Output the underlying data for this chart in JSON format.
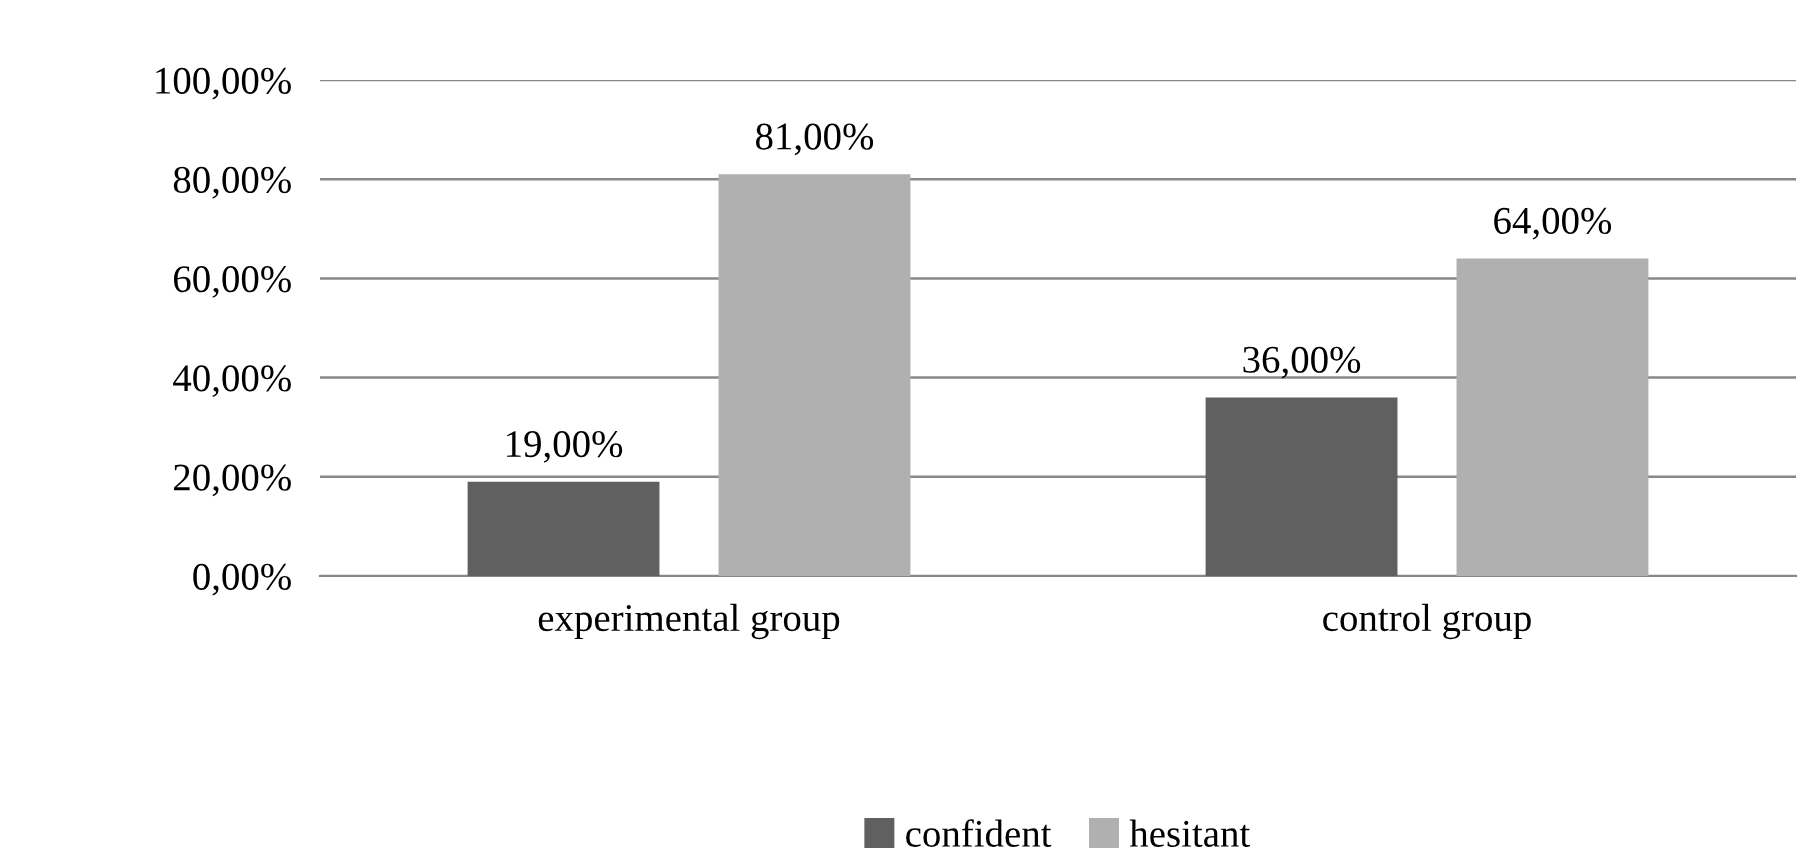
{
  "chart_data": {
    "type": "bar",
    "categories": [
      "experimental group",
      "control group"
    ],
    "series": [
      {
        "name": "confident",
        "color": "#606060",
        "values": [
          19,
          36
        ],
        "value_labels": [
          "19,00%",
          "36,00%"
        ]
      },
      {
        "name": "hesitant",
        "color": "#b0b0b0",
        "values": [
          81,
          64
        ],
        "value_labels": [
          "81,00%",
          "64,00%"
        ]
      }
    ],
    "ylim": [
      0,
      100
    ],
    "yticks": [
      {
        "value": 0,
        "label": "0,00%"
      },
      {
        "value": 20,
        "label": "20,00%"
      },
      {
        "value": 40,
        "label": "40,00%"
      },
      {
        "value": 60,
        "label": "60,00%"
      },
      {
        "value": 80,
        "label": "80,00%"
      },
      {
        "value": 100,
        "label": "100,00%"
      }
    ],
    "grid": "y",
    "legend": "bottom"
  }
}
